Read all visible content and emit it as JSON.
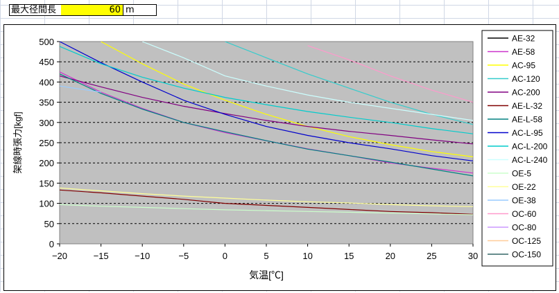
{
  "sheet": {
    "label": "最大径間長",
    "value": "60",
    "unit": "m"
  },
  "chart_data": {
    "type": "line",
    "title": "",
    "xlabel": "気温[℃]",
    "ylabel": "架線時張力[kgf]",
    "xlim": [
      -20,
      30
    ],
    "ylim": [
      0,
      500
    ],
    "x_ticks": [
      -20,
      -15,
      -10,
      -5,
      0,
      5,
      10,
      15,
      20,
      25,
      30
    ],
    "y_ticks": [
      0,
      50,
      100,
      150,
      200,
      250,
      300,
      350,
      400,
      450,
      500
    ],
    "grid": "horizontal dashed",
    "plot_background": "#c0c0c0",
    "legend_position": "right",
    "x": [
      -20,
      -15,
      -10,
      -5,
      0,
      5,
      10,
      15,
      20,
      25,
      30
    ],
    "series": [
      {
        "name": "AE-32",
        "color": "#000000",
        "values": [
          null,
          null,
          null,
          null,
          null,
          null,
          null,
          null,
          null,
          null,
          null
        ]
      },
      {
        "name": "AE-58",
        "color": "#cc33cc",
        "values": [
          425,
          375,
          335,
          300,
          275,
          255,
          235,
          218,
          200,
          187,
          175
        ]
      },
      {
        "name": "AC-95",
        "color": "#ffff00",
        "values": [
          null,
          500,
          445,
          395,
          355,
          320,
          290,
          265,
          245,
          228,
          215
        ]
      },
      {
        "name": "AC-120",
        "color": "#33cccc",
        "values": [
          null,
          null,
          null,
          null,
          500,
          460,
          420,
          385,
          350,
          320,
          295
        ]
      },
      {
        "name": "AC-200",
        "color": "#800080",
        "values": [
          415,
          388,
          362,
          340,
          322,
          305,
          290,
          278,
          268,
          257,
          247
        ]
      },
      {
        "name": "AE-L-32",
        "color": "#800000",
        "values": [
          133,
          126,
          118,
          110,
          100,
          95,
          90,
          85,
          80,
          77,
          73
        ]
      },
      {
        "name": "AE-L-58",
        "color": "#008080",
        "values": [
          420,
          372,
          333,
          300,
          277,
          255,
          234,
          218,
          202,
          185,
          168
        ]
      },
      {
        "name": "AC-L-95",
        "color": "#0000cc",
        "values": [
          500,
          448,
          400,
          355,
          320,
          290,
          268,
          250,
          235,
          218,
          205
        ]
      },
      {
        "name": "AC-L-200",
        "color": "#00cccc",
        "values": [
          488,
          445,
          412,
          385,
          362,
          344,
          327,
          313,
          300,
          285,
          272
        ]
      },
      {
        "name": "AC-L-240",
        "color": "#ccffff",
        "values": [
          null,
          null,
          500,
          460,
          415,
          390,
          368,
          350,
          335,
          320,
          305
        ]
      },
      {
        "name": "OE-5",
        "color": "#ccffcc",
        "values": [
          97,
          93,
          90,
          87,
          84,
          82,
          80,
          78,
          76,
          74,
          72
        ]
      },
      {
        "name": "OE-22",
        "color": "#ffff99",
        "values": [
          138,
          131,
          124,
          118,
          113,
          108,
          104,
          101,
          97,
          94,
          92
        ]
      },
      {
        "name": "OE-38",
        "color": "#99ccff",
        "values": [
          390,
          375,
          null,
          null,
          null,
          null,
          null,
          null,
          null,
          null,
          null
        ]
      },
      {
        "name": "OC-60",
        "color": "#ff99cc",
        "values": [
          null,
          null,
          null,
          null,
          null,
          null,
          490,
          455,
          415,
          380,
          350
        ]
      },
      {
        "name": "OC-80",
        "color": "#cc99ff",
        "values": [
          null,
          null,
          null,
          null,
          null,
          null,
          null,
          null,
          null,
          null,
          null
        ]
      },
      {
        "name": "OC-125",
        "color": "#ffcc99",
        "values": [
          null,
          null,
          null,
          null,
          null,
          null,
          null,
          null,
          null,
          null,
          null
        ]
      },
      {
        "name": "OC-150",
        "color": "#336666",
        "values": [
          null,
          null,
          null,
          null,
          null,
          null,
          null,
          null,
          null,
          null,
          null
        ]
      }
    ]
  }
}
